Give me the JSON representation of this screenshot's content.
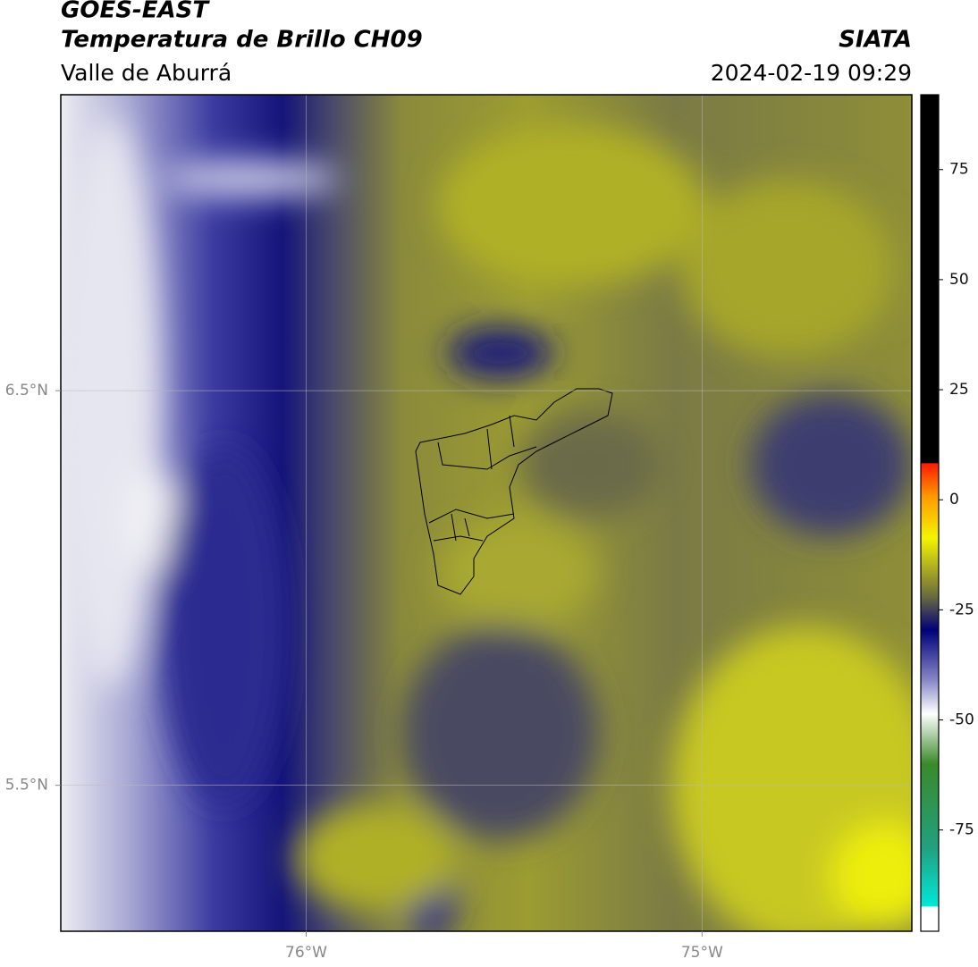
{
  "header": {
    "title": "GOES-EAST",
    "subtitle": "Temperatura de Brillo CH09",
    "region": "Valle de Aburrá",
    "source": "SIATA",
    "datetime": "2024-02-19 09:29"
  },
  "map": {
    "xlim": [
      -76.62,
      -74.47
    ],
    "ylim": [
      5.13,
      7.25
    ],
    "xticks": [
      {
        "value": -76,
        "label": "76°W"
      },
      {
        "value": -75,
        "label": "75°W"
      }
    ],
    "yticks": [
      {
        "value": 5.5,
        "label": "5.5°N"
      },
      {
        "value": 6.5,
        "label": "6.5°N"
      }
    ],
    "grid": true
  },
  "colorbar": {
    "lim": [
      -98,
      92
    ],
    "ticks": [
      -75,
      -50,
      -25,
      0,
      25,
      50,
      75
    ]
  }
}
